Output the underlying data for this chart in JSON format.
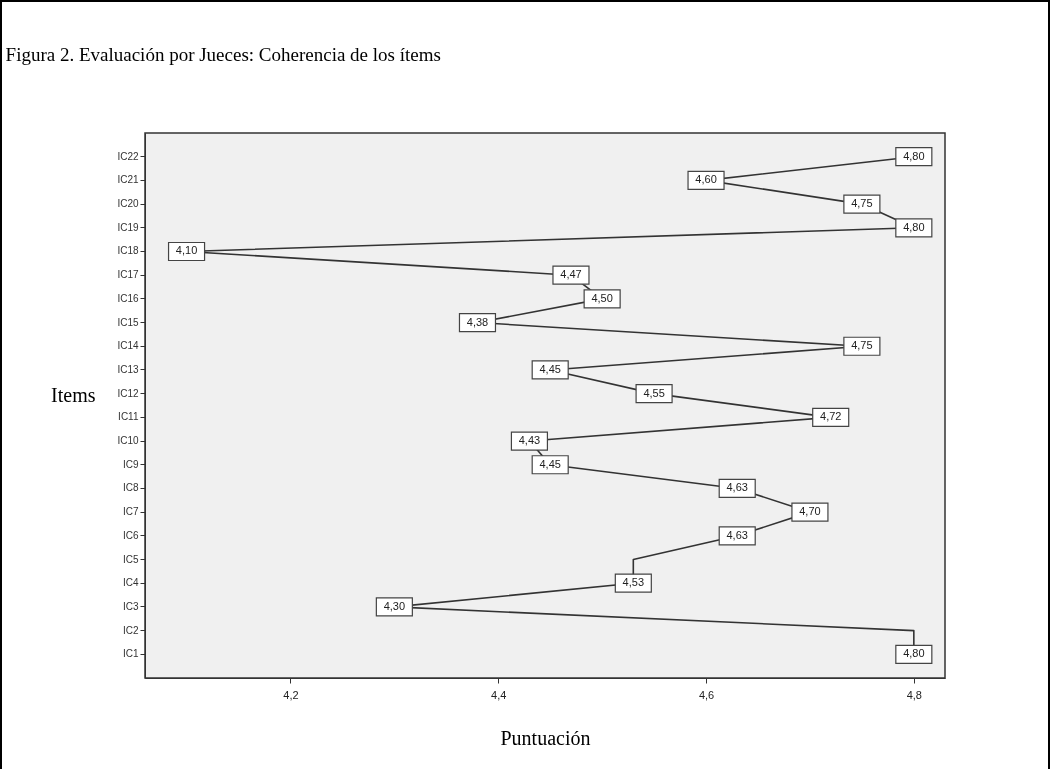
{
  "chart_data": {
    "type": "line",
    "orientation": "horizontal",
    "title": "Figura 2. Evaluación por Jueces: Coherencia de los ítems",
    "xlabel": "Puntuación",
    "ylabel": "Items",
    "categories": [
      "IC22",
      "IC21",
      "IC20",
      "IC19",
      "IC18",
      "IC17",
      "IC16",
      "IC15",
      "IC14",
      "IC13",
      "IC12",
      "IC11",
      "IC10",
      "IC9",
      "IC8",
      "IC7",
      "IC6",
      "IC5",
      "IC4",
      "IC3",
      "IC2",
      "IC1"
    ],
    "values": [
      4.8,
      4.6,
      4.75,
      4.8,
      4.1,
      4.47,
      4.5,
      4.38,
      4.75,
      4.45,
      4.55,
      4.72,
      4.43,
      4.45,
      4.63,
      4.7,
      4.63,
      4.53,
      4.53,
      4.3,
      4.8,
      4.8
    ],
    "value_labels": [
      "4,80",
      "4,60",
      "4,75",
      "4,80",
      "4,10",
      "4,47",
      "4,50",
      "4,38",
      "4,75",
      "4,45",
      "4,55",
      "4,72",
      "4,43",
      "4,45",
      "4,63",
      "4,70",
      "4,63",
      null,
      "4,53",
      "4,30",
      null,
      "4,80"
    ],
    "color": "#333333",
    "xlim": [
      4.06,
      4.83
    ],
    "xticks": [
      {
        "value": 4.2,
        "label": "4,2"
      },
      {
        "value": 4.4,
        "label": "4,4"
      },
      {
        "value": 4.6,
        "label": "4,6"
      },
      {
        "value": 4.8,
        "label": "4,8"
      }
    ],
    "grid": false,
    "marker": "square"
  }
}
